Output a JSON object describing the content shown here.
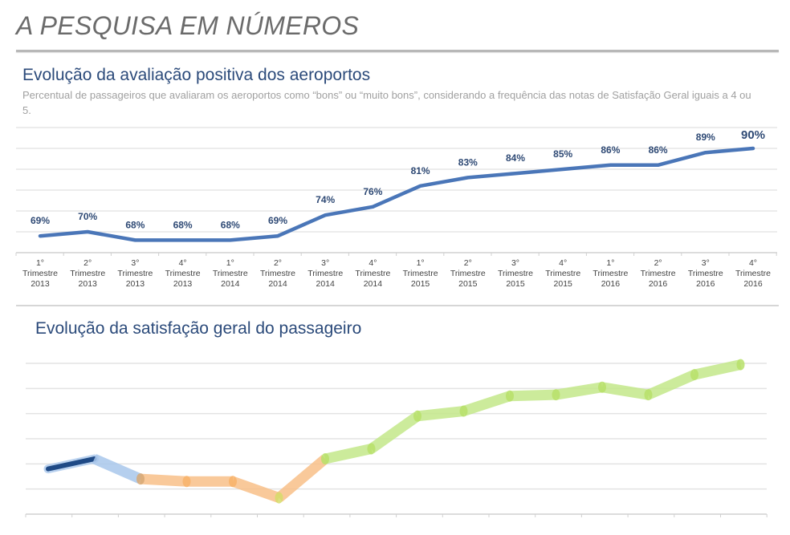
{
  "header": {
    "title": "A PESQUISA EM NÚMEROS"
  },
  "chart_data": [
    {
      "type": "line",
      "title": "Evolução da avaliação positiva dos aeroportos",
      "subtitle": "Percentual de passageiros que avaliaram os aeroportos como “bons” ou “muito bons”, considerando a frequência das notas de Satisfação Geral iguais a 4 ou 5.",
      "categories": [
        [
          "1°",
          "Trimestre",
          "2013"
        ],
        [
          "2°",
          "Trimestre",
          "2013"
        ],
        [
          "3°",
          "Trimestre",
          "2013"
        ],
        [
          "4°",
          "Trimestre",
          "2013"
        ],
        [
          "1°",
          "Trimestre",
          "2014"
        ],
        [
          "2°",
          "Trimestre",
          "2014"
        ],
        [
          "3°",
          "Trimestre",
          "2014"
        ],
        [
          "4°",
          "Trimestre",
          "2014"
        ],
        [
          "1°",
          "Trimestre",
          "2015"
        ],
        [
          "2°",
          "Trimestre",
          "2015"
        ],
        [
          "3°",
          "Trimestre",
          "2015"
        ],
        [
          "4°",
          "Trimestre",
          "2015"
        ],
        [
          "1°",
          "Trimestre",
          "2016"
        ],
        [
          "2°",
          "Trimestre",
          "2016"
        ],
        [
          "3°",
          "Trimestre",
          "2016"
        ],
        [
          "4°",
          "Trimestre",
          "2016"
        ]
      ],
      "values": [
        69,
        70,
        68,
        68,
        68,
        69,
        74,
        76,
        81,
        83,
        84,
        85,
        86,
        86,
        89,
        90
      ],
      "data_labels": [
        "69%",
        "70%",
        "68%",
        "68%",
        "68%",
        "69%",
        "74%",
        "76%",
        "81%",
        "83%",
        "84%",
        "85%",
        "86%",
        "86%",
        "89%",
        "90%"
      ],
      "ylim": [
        65,
        95
      ],
      "grid": true,
      "line_color": "#4a76b8",
      "label_color": "#2f4a75"
    },
    {
      "type": "line",
      "title": "Evolução da satisfação geral do passageiro",
      "values": [
        1.8,
        2.2,
        1.4,
        1.3,
        1.3,
        0.65,
        2.2,
        2.6,
        3.9,
        4.1,
        4.7,
        4.75,
        5.05,
        4.75,
        5.55,
        5.95
      ],
      "ylim": [
        0,
        6
      ],
      "grid": true,
      "segment_colors": [
        "#1f4a86",
        "#a9c7ec",
        "#f9c089",
        "#f9c089",
        "#f9c089",
        "#f9c089",
        "#c4e88a",
        "#c4e88a",
        "#c4e88a",
        "#c4e88a",
        "#c4e88a",
        "#c4e88a",
        "#c4e88a",
        "#c4e88a",
        "#c4e88a"
      ],
      "point_colors": [
        "#1f4a86",
        "#1f4a86",
        "#d7a874",
        "#f8b36a",
        "#f8b36a",
        "#d6dc6a",
        "#b7e06a",
        "#b7e06a",
        "#b7e06a",
        "#b7e06a",
        "#b7e06a",
        "#b7e06a",
        "#b7e06a",
        "#b7e06a",
        "#b7e06a",
        "#b7e06a"
      ]
    }
  ]
}
